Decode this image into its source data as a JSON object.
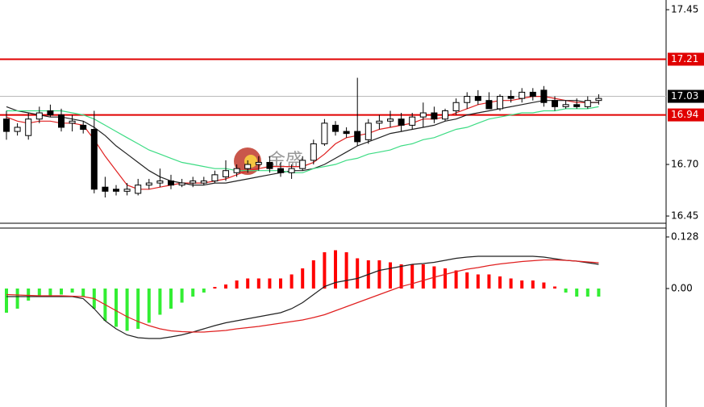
{
  "chart_data": [
    {
      "type": "candlestick",
      "watermark": "金盛",
      "candles": {
        "open": [
          16.92,
          16.86,
          16.84,
          16.92,
          16.96,
          16.94,
          16.9,
          16.89,
          16.87,
          16.59,
          16.58,
          16.57,
          16.56,
          16.6,
          16.61,
          16.62,
          16.6,
          16.61,
          16.61,
          16.62,
          16.64,
          16.66,
          16.68,
          16.7,
          16.71,
          16.68,
          16.66,
          16.68,
          16.72,
          16.8,
          16.89,
          16.86,
          16.86,
          16.82,
          16.9,
          16.91,
          16.92,
          16.89,
          16.93,
          16.95,
          16.92,
          16.96,
          17.0,
          17.03,
          17.01,
          16.97,
          17.03,
          17.02,
          17.05,
          17.06,
          17.01,
          16.98,
          16.99,
          16.98,
          17.01
        ],
        "high": [
          16.96,
          16.9,
          16.95,
          16.98,
          16.99,
          16.97,
          16.94,
          16.91,
          16.96,
          16.64,
          16.6,
          16.61,
          16.63,
          16.63,
          16.68,
          16.65,
          16.63,
          16.64,
          16.64,
          16.67,
          16.72,
          16.7,
          16.72,
          16.74,
          16.74,
          16.71,
          16.7,
          16.74,
          16.82,
          16.92,
          16.91,
          16.88,
          17.12,
          16.92,
          16.94,
          16.96,
          16.95,
          16.95,
          17.0,
          16.98,
          16.97,
          17.02,
          17.05,
          17.06,
          17.05,
          17.04,
          17.06,
          17.07,
          17.07,
          17.08,
          17.03,
          17.01,
          17.02,
          17.03,
          17.04
        ],
        "low": [
          16.82,
          16.84,
          16.82,
          16.9,
          16.93,
          16.86,
          16.86,
          16.85,
          16.56,
          16.54,
          16.55,
          16.55,
          16.55,
          16.58,
          16.59,
          16.58,
          16.59,
          16.59,
          16.6,
          16.61,
          16.62,
          16.64,
          16.66,
          16.67,
          16.66,
          16.64,
          16.63,
          16.67,
          16.7,
          16.79,
          16.84,
          16.83,
          16.79,
          16.8,
          16.87,
          16.88,
          16.86,
          16.87,
          16.88,
          16.9,
          16.91,
          16.94,
          16.97,
          16.99,
          16.98,
          16.96,
          17.0,
          17.0,
          17.01,
          16.98,
          16.96,
          16.97,
          16.97,
          16.97,
          16.99
        ],
        "close": [
          16.86,
          16.88,
          16.92,
          16.95,
          16.94,
          16.88,
          16.91,
          16.87,
          16.58,
          16.57,
          16.57,
          16.58,
          16.6,
          16.61,
          16.62,
          16.6,
          16.61,
          16.62,
          16.62,
          16.65,
          16.67,
          16.68,
          16.7,
          16.71,
          16.68,
          16.66,
          16.68,
          16.72,
          16.8,
          16.9,
          16.86,
          16.85,
          16.81,
          16.9,
          16.91,
          16.92,
          16.89,
          16.93,
          16.95,
          16.92,
          16.96,
          17.0,
          17.03,
          17.01,
          16.97,
          17.03,
          17.02,
          17.05,
          17.03,
          17.0,
          16.98,
          16.99,
          16.98,
          17.01,
          17.02
        ]
      },
      "lines": [
        {
          "color": "#e02020",
          "values": [
            16.93,
            16.91,
            16.9,
            16.91,
            16.91,
            16.9,
            16.9,
            16.89,
            16.82,
            16.74,
            16.67,
            16.6,
            16.58,
            16.58,
            16.59,
            16.6,
            16.61,
            16.61,
            16.61,
            16.62,
            16.63,
            16.65,
            16.67,
            16.68,
            16.69,
            16.69,
            16.69,
            16.69,
            16.71,
            16.75,
            16.8,
            16.83,
            16.84,
            16.85,
            16.87,
            16.88,
            16.89,
            16.9,
            16.92,
            16.92,
            16.93,
            16.95,
            16.97,
            16.99,
            17.0,
            17.01,
            17.01,
            17.02,
            17.03,
            17.03,
            17.02,
            17.01,
            17.0,
            17.0,
            17.0
          ]
        },
        {
          "color": "#222222",
          "values": [
            16.98,
            16.96,
            16.95,
            16.94,
            16.93,
            16.93,
            16.92,
            16.91,
            16.88,
            16.84,
            16.79,
            16.75,
            16.71,
            16.67,
            16.64,
            16.62,
            16.61,
            16.6,
            16.6,
            16.61,
            16.61,
            16.62,
            16.63,
            16.64,
            16.65,
            16.66,
            16.67,
            16.67,
            16.68,
            16.7,
            16.73,
            16.76,
            16.79,
            16.81,
            16.83,
            16.85,
            16.86,
            16.87,
            16.88,
            16.89,
            16.91,
            16.92,
            16.94,
            16.95,
            16.96,
            16.97,
            16.98,
            16.99,
            17.0,
            17.01,
            17.01,
            17.01,
            17.01,
            17.0,
            17.0
          ]
        },
        {
          "color": "#3ddc84",
          "values": [
            16.96,
            16.96,
            16.96,
            16.96,
            16.96,
            16.96,
            16.95,
            16.94,
            16.92,
            16.89,
            16.86,
            16.83,
            16.8,
            16.77,
            16.75,
            16.73,
            16.71,
            16.7,
            16.69,
            16.68,
            16.68,
            16.67,
            16.67,
            16.67,
            16.67,
            16.67,
            16.66,
            16.66,
            16.68,
            16.69,
            16.7,
            16.72,
            16.73,
            16.75,
            16.76,
            16.77,
            16.79,
            16.8,
            16.82,
            16.83,
            16.85,
            16.87,
            16.88,
            16.9,
            16.92,
            16.93,
            16.94,
            16.95,
            16.95,
            16.96,
            16.96,
            16.97,
            16.97,
            16.97,
            16.98
          ]
        }
      ],
      "levels": [
        {
          "value": 17.21,
          "label": "17.21",
          "color": "#e00000"
        },
        {
          "value": 16.94,
          "label": "16.94",
          "color": "#e00000"
        },
        {
          "value": 17.03,
          "label": "17.03",
          "color": "#bbbbbb"
        }
      ],
      "ylim": [
        16.415,
        17.497
      ],
      "yticks": [
        17.45,
        {
          "value": 16.7,
          "label": "16.70"
        },
        16.45
      ]
    },
    {
      "type": "macd",
      "histogram": {
        "positive_color": "#ff0000",
        "negative_color": "#33ee33",
        "values": [
          -0.06,
          -0.05,
          -0.03,
          -0.02,
          -0.02,
          -0.015,
          -0.01,
          -0.02,
          -0.05,
          -0.08,
          -0.095,
          -0.105,
          -0.1,
          -0.085,
          -0.065,
          -0.05,
          -0.035,
          -0.02,
          -0.01,
          0.004,
          0.01,
          0.02,
          0.025,
          0.025,
          0.025,
          0.025,
          0.035,
          0.05,
          0.07,
          0.09,
          0.095,
          0.09,
          0.075,
          0.07,
          0.07,
          0.065,
          0.06,
          0.06,
          0.06,
          0.055,
          0.05,
          0.045,
          0.04,
          0.035,
          0.035,
          0.03,
          0.025,
          0.02,
          0.02,
          0.015,
          0.005,
          -0.01,
          -0.02,
          -0.02,
          -0.02
        ]
      },
      "lines": [
        {
          "color": "#222222",
          "values": [
            -0.02,
            -0.02,
            -0.02,
            -0.02,
            -0.02,
            -0.02,
            -0.02,
            -0.025,
            -0.05,
            -0.08,
            -0.1,
            -0.115,
            -0.122,
            -0.124,
            -0.124,
            -0.12,
            -0.115,
            -0.108,
            -0.1,
            -0.092,
            -0.085,
            -0.08,
            -0.075,
            -0.07,
            -0.065,
            -0.06,
            -0.05,
            -0.035,
            -0.015,
            0.005,
            0.015,
            0.02,
            0.025,
            0.035,
            0.045,
            0.05,
            0.055,
            0.06,
            0.062,
            0.065,
            0.07,
            0.075,
            0.078,
            0.08,
            0.08,
            0.08,
            0.08,
            0.08,
            0.08,
            0.078,
            0.074,
            0.07,
            0.068,
            0.064,
            0.06
          ]
        },
        {
          "color": "#e02020",
          "values": [
            -0.015,
            -0.016,
            -0.017,
            -0.018,
            -0.018,
            -0.018,
            -0.019,
            -0.02,
            -0.025,
            -0.04,
            -0.055,
            -0.07,
            -0.082,
            -0.092,
            -0.1,
            -0.105,
            -0.107,
            -0.108,
            -0.108,
            -0.106,
            -0.104,
            -0.1,
            -0.097,
            -0.094,
            -0.09,
            -0.086,
            -0.082,
            -0.078,
            -0.072,
            -0.065,
            -0.055,
            -0.045,
            -0.035,
            -0.025,
            -0.015,
            -0.005,
            0.005,
            0.012,
            0.02,
            0.028,
            0.035,
            0.042,
            0.048,
            0.052,
            0.057,
            0.061,
            0.064,
            0.067,
            0.069,
            0.071,
            0.071,
            0.07,
            0.068,
            0.066,
            0.064
          ]
        }
      ],
      "ylim": [
        -0.294,
        0.15
      ],
      "yticks": [
        0.128,
        {
          "value": 0,
          "label": "0.00"
        }
      ]
    }
  ]
}
